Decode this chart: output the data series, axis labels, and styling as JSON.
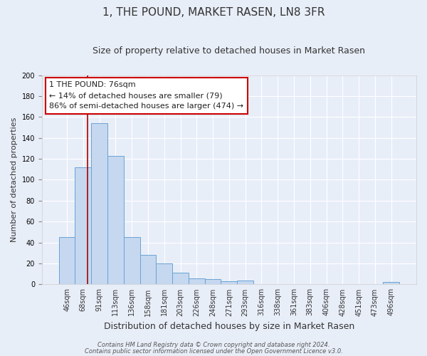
{
  "title": "1, THE POUND, MARKET RASEN, LN8 3FR",
  "subtitle": "Size of property relative to detached houses in Market Rasen",
  "xlabel": "Distribution of detached houses by size in Market Rasen",
  "ylabel": "Number of detached properties",
  "bar_color": "#c5d8f0",
  "bar_edge_color": "#6aa3d5",
  "background_color": "#e8eef8",
  "grid_color": "#ffffff",
  "categories": [
    "46sqm",
    "68sqm",
    "91sqm",
    "113sqm",
    "136sqm",
    "158sqm",
    "181sqm",
    "203sqm",
    "226sqm",
    "248sqm",
    "271sqm",
    "293sqm",
    "316sqm",
    "338sqm",
    "361sqm",
    "383sqm",
    "406sqm",
    "428sqm",
    "451sqm",
    "473sqm",
    "496sqm"
  ],
  "values": [
    45,
    112,
    154,
    123,
    45,
    28,
    20,
    11,
    6,
    5,
    3,
    4,
    0,
    0,
    0,
    0,
    0,
    0,
    0,
    0,
    2
  ],
  "ylim": [
    0,
    200
  ],
  "yticks": [
    0,
    20,
    40,
    60,
    80,
    100,
    120,
    140,
    160,
    180,
    200
  ],
  "vline_x": 1.25,
  "vline_color": "#aa0000",
  "annotation_line1": "1 THE POUND: 76sqm",
  "annotation_line2": "← 14% of detached houses are smaller (79)",
  "annotation_line3": "86% of semi-detached houses are larger (474) →",
  "annotation_box_color": "#ffffff",
  "annotation_box_edge_color": "#cc0000",
  "footer_line1": "Contains HM Land Registry data © Crown copyright and database right 2024.",
  "footer_line2": "Contains public sector information licensed under the Open Government Licence v3.0.",
  "title_fontsize": 11,
  "subtitle_fontsize": 9,
  "xlabel_fontsize": 9,
  "ylabel_fontsize": 8,
  "tick_fontsize": 7,
  "annotation_fontsize": 8,
  "footer_fontsize": 6
}
